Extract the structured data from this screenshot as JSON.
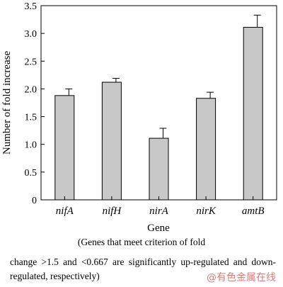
{
  "chart_data": {
    "type": "bar",
    "categories": [
      "nifA",
      "nifH",
      "nirA",
      "nirK",
      "amtB"
    ],
    "values": [
      1.88,
      2.12,
      1.11,
      1.83,
      3.11
    ],
    "errors": [
      0.12,
      0.07,
      0.18,
      0.11,
      0.22
    ],
    "ylabel": "Number of fold increase",
    "xlabel": "Gene",
    "ylim": [
      0,
      3.5
    ],
    "yticks": [
      "0",
      "0.5",
      "1.0",
      "1.5",
      "2.0",
      "2.5",
      "3.0",
      "3.5"
    ],
    "bar_color": "#c8c8c8",
    "grid": false
  },
  "caption": {
    "line1": "(Genes that meet criterion of fold",
    "line2": "change >1.5 and <0.667 are significantly up-regulated and down-regulated, respectively)"
  },
  "watermark": "@有色金属在线"
}
